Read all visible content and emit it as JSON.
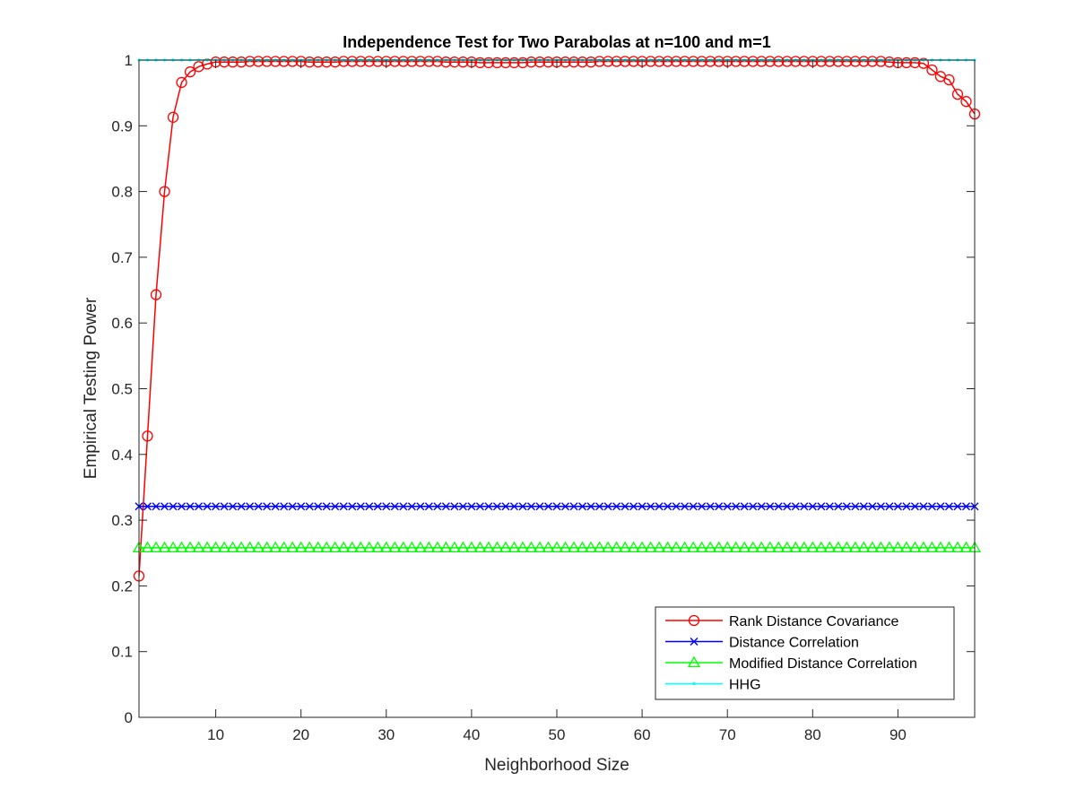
{
  "chart_data": {
    "type": "line",
    "title": "Independence Test for Two Parabolas at n=100 and m=1",
    "xlabel": "Neighborhood Size",
    "ylabel": "Empirical Testing Power",
    "xlim": [
      1,
      99
    ],
    "ylim": [
      0,
      1
    ],
    "xticks": [
      10,
      20,
      30,
      40,
      50,
      60,
      70,
      80,
      90
    ],
    "xtick_labels": [
      "10",
      "20",
      "30",
      "40",
      "50",
      "60",
      "70",
      "80",
      "90"
    ],
    "yticks": [
      0,
      0.1,
      0.2,
      0.3,
      0.4,
      0.5,
      0.6,
      0.7,
      0.8,
      0.9,
      1
    ],
    "ytick_labels": [
      "0",
      "0.1",
      "0.2",
      "0.3",
      "0.4",
      "0.5",
      "0.6",
      "0.7",
      "0.8",
      "0.9",
      "1"
    ],
    "grid": false,
    "legend_position": "bottom-right",
    "series": [
      {
        "name": "Rank Distance Covariance",
        "color": "#ff0000",
        "marker": "circle",
        "x_start": 1,
        "x_end": 99,
        "values": [
          0.215,
          0.428,
          0.643,
          0.8,
          0.913,
          0.966,
          0.982,
          0.99,
          0.994,
          0.997,
          0.997,
          0.997,
          0.997,
          0.998,
          0.998,
          0.998,
          0.998,
          0.998,
          0.998,
          0.998,
          0.997,
          0.997,
          0.997,
          0.997,
          0.998,
          0.998,
          0.998,
          0.998,
          0.998,
          0.998,
          0.998,
          0.998,
          0.998,
          0.998,
          0.998,
          0.998,
          0.997,
          0.997,
          0.997,
          0.997,
          0.996,
          0.996,
          0.996,
          0.996,
          0.996,
          0.996,
          0.997,
          0.997,
          0.997,
          0.997,
          0.997,
          0.997,
          0.997,
          0.997,
          0.998,
          0.998,
          0.998,
          0.998,
          0.998,
          0.998,
          0.998,
          0.998,
          0.998,
          0.998,
          0.998,
          0.998,
          0.998,
          0.998,
          0.998,
          0.998,
          0.998,
          0.998,
          0.998,
          0.998,
          0.998,
          0.998,
          0.998,
          0.998,
          0.998,
          0.998,
          0.998,
          0.998,
          0.998,
          0.998,
          0.998,
          0.998,
          0.998,
          0.998,
          0.997,
          0.996,
          0.996,
          0.996,
          0.995,
          0.985,
          0.975,
          0.97,
          0.948,
          0.937,
          0.918
        ]
      },
      {
        "name": "Distance Correlation",
        "color": "#0000ff",
        "marker": "x",
        "x_start": 1,
        "x_end": 99,
        "constant": 0.321
      },
      {
        "name": "Modified Distance Correlation",
        "color": "#00ff00",
        "marker": "triangle",
        "x_start": 1,
        "x_end": 99,
        "constant": 0.258
      },
      {
        "name": "HHG",
        "color": "#00ffff",
        "marker": "dot",
        "x_start": 1,
        "x_end": 99,
        "constant": 1.0
      }
    ]
  }
}
